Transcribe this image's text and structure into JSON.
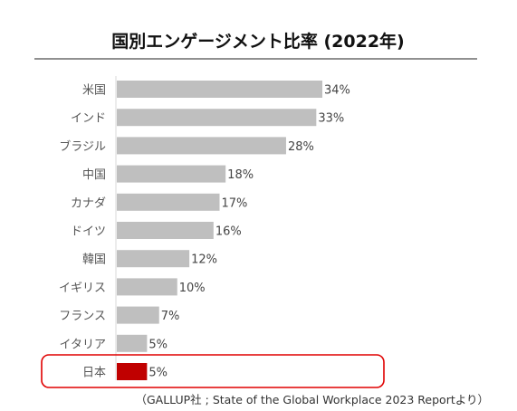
{
  "chart_data": {
    "type": "bar",
    "orientation": "horizontal",
    "title": "国別エンゲージメント比率 (2022年)",
    "categories": [
      "米国",
      "インド",
      "ブラジル",
      "中国",
      "カナダ",
      "ドイツ",
      "韓国",
      "イギリス",
      "フランス",
      "イタリア",
      "日本"
    ],
    "values": [
      34,
      33,
      28,
      18,
      17,
      16,
      12,
      10,
      7,
      5,
      5
    ],
    "value_labels": [
      "34%",
      "33%",
      "28%",
      "18%",
      "17%",
      "16%",
      "12%",
      "10%",
      "7%",
      "5%",
      "5%"
    ],
    "xlim": [
      0,
      34
    ],
    "grid": false,
    "highlighted_category": "日本",
    "colors": {
      "bar": "#bfbfbf",
      "highlight_bar": "#c00000",
      "highlight_box": "#e00000"
    }
  },
  "source": "（GALLUP社 ; State of the Global Workplace 2023 Reportより）"
}
